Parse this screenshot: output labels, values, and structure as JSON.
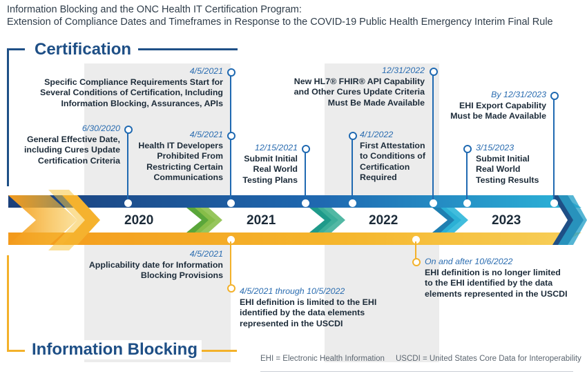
{
  "header": {
    "title_line1": "Information Blocking and the ONC Health IT Certification Program:",
    "title_line2": "Extension of Compliance Dates and Timeframes in Response to the COVID-19 Public Health Emergency Interim Final Rule"
  },
  "sections": {
    "certification": "Certification",
    "information_blocking": "Information Blocking"
  },
  "years": [
    "2020",
    "2021",
    "2022",
    "2023"
  ],
  "certification_events": [
    {
      "date": "6/30/2020",
      "text_lines": [
        "General Effective Date,",
        "including Cures Update",
        "Certification Criteria"
      ]
    },
    {
      "date": "4/5/2021",
      "text_lines": [
        "Specific Compliance Requirements Start for",
        "Several Conditions of Certification, Including",
        "Information Blocking, Assurances, APIs"
      ]
    },
    {
      "date": "4/5/2021",
      "text_lines": [
        "Health IT Developers",
        "Prohibited From",
        "Restricting Certain",
        "Communications"
      ]
    },
    {
      "date": "12/15/2021",
      "text_lines": [
        "Submit Initial",
        "Real World",
        "Testing Plans"
      ]
    },
    {
      "date": "4/1/2022",
      "text_lines": [
        "First Attestation",
        "to Conditions of",
        "Certification",
        "Required"
      ]
    },
    {
      "date": "12/31/2022",
      "text_lines": [
        "New HL7® FHIR® API Capability",
        "and Other Cures Update Criteria",
        "Must Be Made Available"
      ]
    },
    {
      "date": "3/15/2023",
      "text_lines": [
        "Submit Initial",
        "Real World",
        "Testing Results"
      ]
    },
    {
      "date": "By 12/31/2023",
      "text_lines": [
        "EHI Export Capability",
        "Must be Made Available"
      ]
    }
  ],
  "information_blocking_events": [
    {
      "date": "4/5/2021",
      "text_lines": [
        "Applicability date for Information",
        "Blocking Provisions"
      ]
    },
    {
      "date": "4/5/2021 through 10/5/2022",
      "text_lines": [
        "EHI definition is limited to the EHI",
        "identified by the data elements",
        "represented in the USCDI"
      ]
    },
    {
      "date": "On and after 10/6/2022",
      "text_lines": [
        "EHI definition is no longer limited",
        "to the EHI identified by the data",
        "elements represented in the USCDI"
      ]
    }
  ],
  "footnotes": {
    "ehi": "EHI = Electronic Health Information",
    "uscdi": "USCDI = United States Core Data for Interoperability"
  },
  "colors": {
    "blue_dark": "#1e4f86",
    "blue": "#1f69b1",
    "teal": "#2ba3c9",
    "orange": "#f3b12a",
    "green": "#5aa63a"
  }
}
